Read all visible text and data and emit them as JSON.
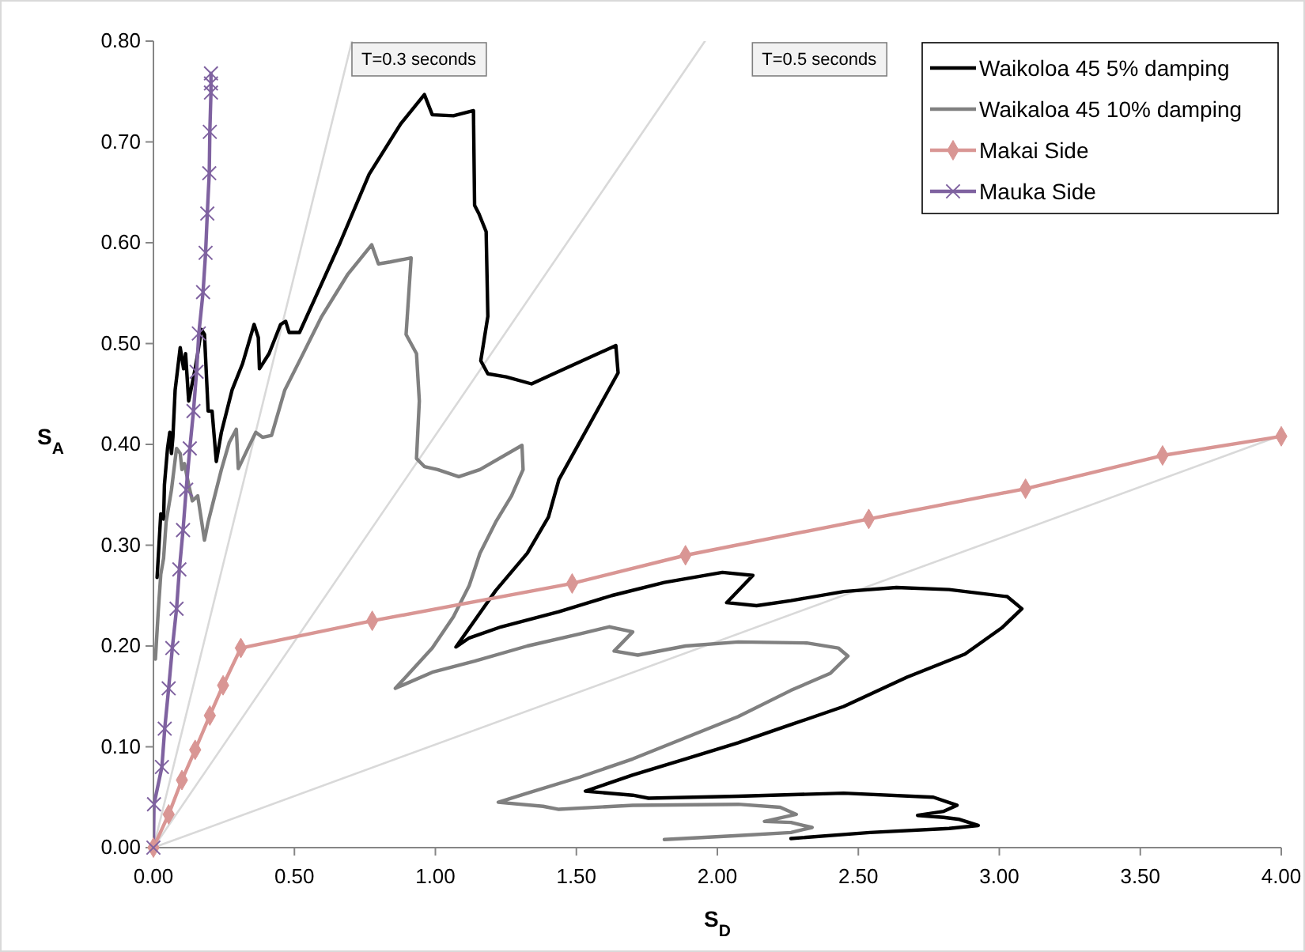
{
  "chart_data": {
    "type": "line",
    "xlabel": "S$_{D}$",
    "ylabel": "S$_{A}$",
    "xlim": [
      0,
      4
    ],
    "ylim": [
      0,
      0.8
    ],
    "xticks": [
      {
        "value": 0,
        "label": "0.00"
      },
      {
        "value": 0.5,
        "label": "0.50"
      },
      {
        "value": 1,
        "label": "1.00"
      },
      {
        "value": 1.5,
        "label": "1.50"
      },
      {
        "value": 2,
        "label": "2.00"
      },
      {
        "value": 2.5,
        "label": "2.50"
      },
      {
        "value": 3,
        "label": "3.00"
      },
      {
        "value": 3.5,
        "label": "3.50"
      },
      {
        "value": 4,
        "label": "4.00"
      }
    ],
    "yticks": [
      {
        "value": 0,
        "label": "0.00"
      },
      {
        "value": 0.1,
        "label": "0.10"
      },
      {
        "value": 0.2,
        "label": "0.20"
      },
      {
        "value": 0.3,
        "label": "0.30"
      },
      {
        "value": 0.4,
        "label": "0.40"
      },
      {
        "value": 0.5,
        "label": "0.50"
      },
      {
        "value": 0.6,
        "label": "0.60"
      },
      {
        "value": 0.7,
        "label": "0.70"
      },
      {
        "value": 0.8,
        "label": "0.80"
      }
    ],
    "grid": false,
    "legend": "top right",
    "line_style": "solid",
    "annotations": [
      "T=0.3 seconds",
      "T=0.5 seconds"
    ],
    "series": [
      {
        "color": "#d9d9d9",
        "marker": "none",
        "x": [
          0,
          0.704
        ],
        "values": [
          0,
          0.8
        ]
      },
      {
        "color": "#d9d9d9",
        "marker": "none",
        "x": [
          0,
          1.956
        ],
        "values": [
          0,
          0.8
        ]
      },
      {
        "color": "#d9d9d9",
        "marker": "none",
        "x": [
          0,
          4.0
        ],
        "values": [
          0,
          0.409
        ]
      },
      {
        "name": "Waikoloa 45 5% damping",
        "color": "#000000",
        "marker": "none",
        "x": [
          0.013,
          0.026,
          0.036,
          0.039,
          0.05,
          0.058,
          0.064,
          0.069,
          0.077,
          0.095,
          0.107,
          0.114,
          0.125,
          0.133,
          0.148,
          0.157,
          0.17,
          0.181,
          0.194,
          0.208,
          0.223,
          0.241,
          0.279,
          0.316,
          0.357,
          0.372,
          0.376,
          0.41,
          0.451,
          0.469,
          0.481,
          0.518,
          0.578,
          0.662,
          0.765,
          0.877,
          0.961,
          0.989,
          1.064,
          1.135,
          1.139,
          1.154,
          1.18,
          1.186,
          1.161,
          1.186,
          1.251,
          1.341,
          1.419,
          1.64,
          1.648,
          1.438,
          1.401,
          1.326,
          1.214,
          1.073,
          1.12,
          1.233,
          1.438,
          1.625,
          1.812,
          2.018,
          2.126,
          2.033,
          2.139,
          2.261,
          2.448,
          2.635,
          2.822,
          3.028,
          3.08,
          3.009,
          2.878,
          2.672,
          2.448,
          2.261,
          2.074,
          1.887,
          1.7,
          1.532,
          1.7,
          1.756,
          2.074,
          2.448,
          2.766,
          2.85,
          2.803,
          2.71,
          2.803,
          2.859,
          2.925,
          2.822,
          2.541,
          2.261
        ],
        "values": [
          0.268,
          0.331,
          0.326,
          0.36,
          0.396,
          0.412,
          0.391,
          0.407,
          0.454,
          0.496,
          0.475,
          0.49,
          0.443,
          0.454,
          0.475,
          0.49,
          0.514,
          0.509,
          0.433,
          0.433,
          0.383,
          0.412,
          0.454,
          0.48,
          0.519,
          0.506,
          0.475,
          0.49,
          0.519,
          0.522,
          0.511,
          0.511,
          0.548,
          0.6,
          0.668,
          0.718,
          0.747,
          0.727,
          0.726,
          0.731,
          0.637,
          0.629,
          0.611,
          0.527,
          0.483,
          0.47,
          0.467,
          0.46,
          0.47,
          0.498,
          0.471,
          0.365,
          0.328,
          0.292,
          0.255,
          0.199,
          0.208,
          0.219,
          0.234,
          0.25,
          0.263,
          0.273,
          0.27,
          0.243,
          0.24,
          0.245,
          0.254,
          0.258,
          0.256,
          0.249,
          0.237,
          0.218,
          0.192,
          0.169,
          0.14,
          0.122,
          0.104,
          0.088,
          0.072,
          0.056,
          0.052,
          0.049,
          0.051,
          0.054,
          0.05,
          0.042,
          0.036,
          0.032,
          0.03,
          0.028,
          0.022,
          0.019,
          0.015,
          0.009
        ]
      },
      {
        "name": "Waikaloa 45 10% damping",
        "color": "#808080",
        "marker": "none",
        "x": [
          0.007,
          0.017,
          0.026,
          0.036,
          0.045,
          0.064,
          0.082,
          0.095,
          0.101,
          0.11,
          0.125,
          0.138,
          0.157,
          0.181,
          0.194,
          0.213,
          0.241,
          0.269,
          0.294,
          0.301,
          0.335,
          0.363,
          0.387,
          0.419,
          0.466,
          0.522,
          0.597,
          0.69,
          0.774,
          0.798,
          0.84,
          0.914,
          0.896,
          0.933,
          0.943,
          0.933,
          0.961,
          1.008,
          1.083,
          1.158,
          1.307,
          1.311,
          1.27,
          1.214,
          1.158,
          1.12,
          1.064,
          0.989,
          0.858,
          0.989,
          1.139,
          1.326,
          1.513,
          1.616,
          1.7,
          1.634,
          1.718,
          1.887,
          2.074,
          2.317,
          2.429,
          2.463,
          2.401,
          2.261,
          2.074,
          1.887,
          1.7,
          1.513,
          1.326,
          1.223,
          1.382,
          1.438,
          1.7,
          2.074,
          2.223,
          2.28,
          2.167,
          2.261,
          2.336,
          2.261,
          2.074,
          1.812
        ],
        "values": [
          0.187,
          0.234,
          0.271,
          0.287,
          0.323,
          0.355,
          0.396,
          0.391,
          0.375,
          0.381,
          0.36,
          0.344,
          0.349,
          0.305,
          0.323,
          0.344,
          0.375,
          0.402,
          0.415,
          0.376,
          0.396,
          0.412,
          0.407,
          0.409,
          0.454,
          0.485,
          0.527,
          0.569,
          0.598,
          0.579,
          0.581,
          0.585,
          0.509,
          0.49,
          0.443,
          0.386,
          0.378,
          0.375,
          0.368,
          0.375,
          0.399,
          0.375,
          0.349,
          0.323,
          0.292,
          0.26,
          0.229,
          0.198,
          0.158,
          0.174,
          0.185,
          0.2,
          0.212,
          0.219,
          0.214,
          0.195,
          0.191,
          0.2,
          0.204,
          0.203,
          0.198,
          0.19,
          0.173,
          0.156,
          0.13,
          0.109,
          0.088,
          0.07,
          0.054,
          0.045,
          0.041,
          0.038,
          0.042,
          0.043,
          0.04,
          0.033,
          0.026,
          0.025,
          0.02,
          0.015,
          0.012,
          0.008
        ]
      },
      {
        "name": "Makai Side",
        "color": "#d99694",
        "marker": "diamond",
        "x": [
          0,
          0.054,
          0.101,
          0.148,
          0.2,
          0.247,
          0.31,
          0.776,
          1.485,
          1.887,
          2.537,
          3.093,
          3.579,
          4.0
        ],
        "values": [
          0,
          0.033,
          0.067,
          0.097,
          0.131,
          0.161,
          0.198,
          0.225,
          0.262,
          0.29,
          0.326,
          0.356,
          0.389,
          0.408
        ]
      },
      {
        "name": "Mauka Side",
        "color": "#7f62a0",
        "marker": "cross",
        "x": [
          0,
          0.002,
          0.03,
          0.04,
          0.054,
          0.067,
          0.082,
          0.092,
          0.105,
          0.116,
          0.129,
          0.142,
          0.153,
          0.161,
          0.176,
          0.185,
          0.191,
          0.198,
          0.2,
          0.204,
          0.204,
          0.204
        ],
        "values": [
          0,
          0.043,
          0.08,
          0.118,
          0.158,
          0.198,
          0.237,
          0.276,
          0.315,
          0.355,
          0.396,
          0.433,
          0.472,
          0.51,
          0.551,
          0.59,
          0.629,
          0.669,
          0.71,
          0.749,
          0.758,
          0.768
        ]
      }
    ]
  }
}
